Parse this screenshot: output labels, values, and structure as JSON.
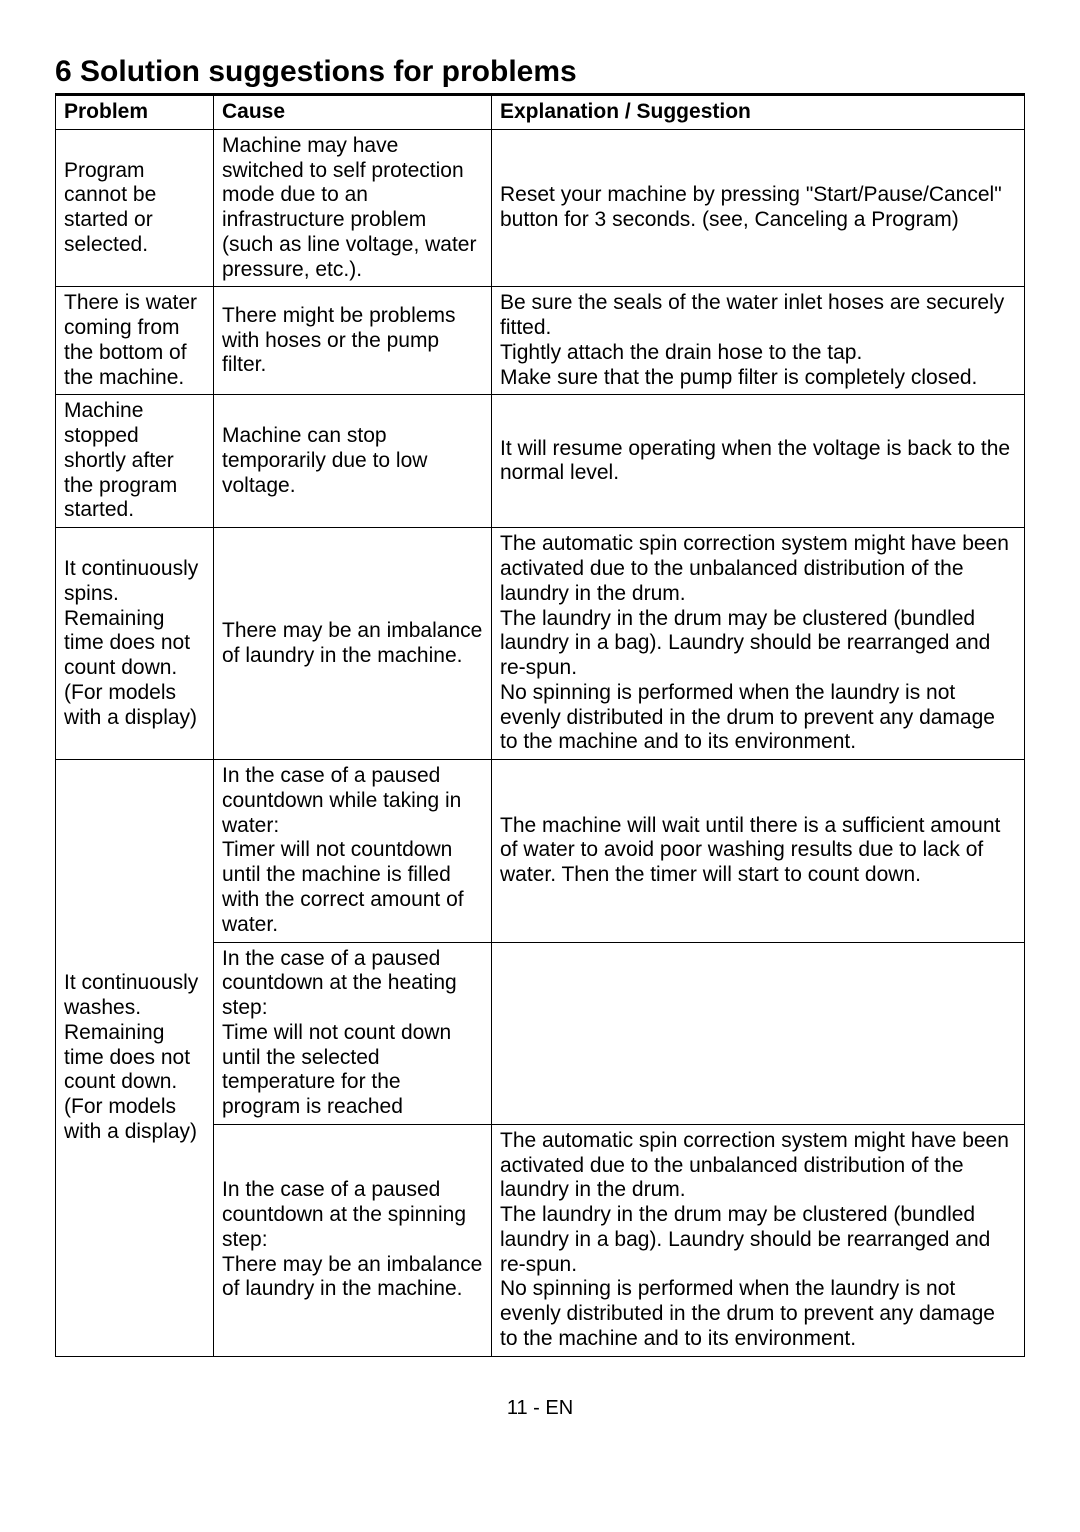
{
  "heading": "6 Solution suggestions for problems",
  "table": {
    "headers": {
      "problem": "Problem",
      "cause": "Cause",
      "explanation": "Explanation / Suggestion"
    },
    "rows": {
      "r1": {
        "problem": "Program cannot be started or selected.",
        "cause": "Machine may have switched to self protection mode due to an infrastructure problem (such as line voltage, water pressure, etc.).",
        "explanation": "Reset your machine by pressing \"Start/Pause/Cancel\" button for 3 seconds. (see, Canceling a Program)"
      },
      "r2": {
        "problem": "There is water coming from the bottom of the machine.",
        "cause": "There might be problems with hoses or the pump filter.",
        "explanation": "Be sure the seals of the water inlet hoses are securely fitted.\nTightly attach the drain hose to the tap.\nMake sure that the pump filter is completely closed."
      },
      "r3": {
        "problem": "Machine stopped shortly after the program started.",
        "cause": "Machine can stop temporarily due to low voltage.",
        "explanation": "It will resume operating when the voltage is back to the normal level."
      },
      "r4": {
        "problem": "It continuously spins.\nRemaining time does not count down.\n(For models with a display)",
        "cause": "There may be an imbalance of laundry in the machine.",
        "explanation": "The automatic spin correction system might have been activated due to the unbalanced distribution of the laundry in the drum.\nThe laundry in the drum may be clustered (bundled laundry in a bag). Laundry should be rearranged and re-spun.\nNo spinning is performed when the laundry is not evenly distributed in the drum to prevent any damage to the machine and to its environment."
      },
      "r5": {
        "problem": "It continuously washes.\nRemaining time does not count down.\n(For models with a display)",
        "cause_a": "In the case of a paused countdown while taking in water:\nTimer will not countdown until the machine is filled with the correct amount of water.",
        "explanation_a": "The machine will wait until there is a sufficient amount of water to avoid poor washing results due to lack of water. Then the timer will start to count down.",
        "cause_b": "In the case of a paused countdown at the heating step:\nTime will not count down until the selected temperature for the program is reached",
        "explanation_b": "",
        "cause_c": "In the case of a paused countdown at the spinning step:\nThere may be an imbalance of laundry in the machine.",
        "explanation_c": "The automatic spin correction system might have been activated due to the unbalanced distribution of the laundry in the drum.\nThe laundry in the drum may be clustered (bundled laundry in a bag). Laundry should be rearranged and re-spun.\nNo spinning is performed when the laundry is not evenly distributed in the drum to prevent any damage to the machine and to its environment."
      }
    }
  },
  "footer": "11 - EN"
}
